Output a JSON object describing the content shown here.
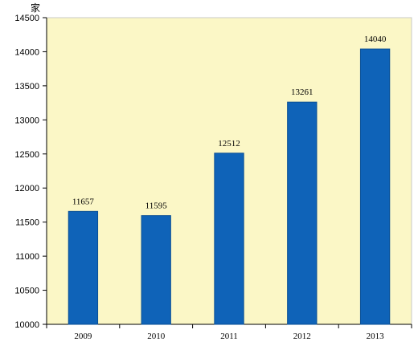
{
  "chart_data": {
    "type": "bar",
    "title": "",
    "xlabel": "",
    "ylabel": "家",
    "categories": [
      "2009",
      "2010",
      "2011",
      "2012",
      "2013"
    ],
    "values": [
      11657,
      11595,
      12512,
      13261,
      14040
    ],
    "data_labels": [
      "11657",
      "11595",
      "12512",
      "13261",
      "14040"
    ],
    "ylim": [
      10000,
      14500
    ],
    "yticks": [
      "10000",
      "10500",
      "11000",
      "11500",
      "12000",
      "12500",
      "13000",
      "13500",
      "14000",
      "14500"
    ],
    "grid": false,
    "legend": "none",
    "colors": {
      "bar": "#0f63b8",
      "bar_edge": "#0a4f95",
      "plot_background": "#fbf7c6",
      "axis": "#000000"
    }
  }
}
